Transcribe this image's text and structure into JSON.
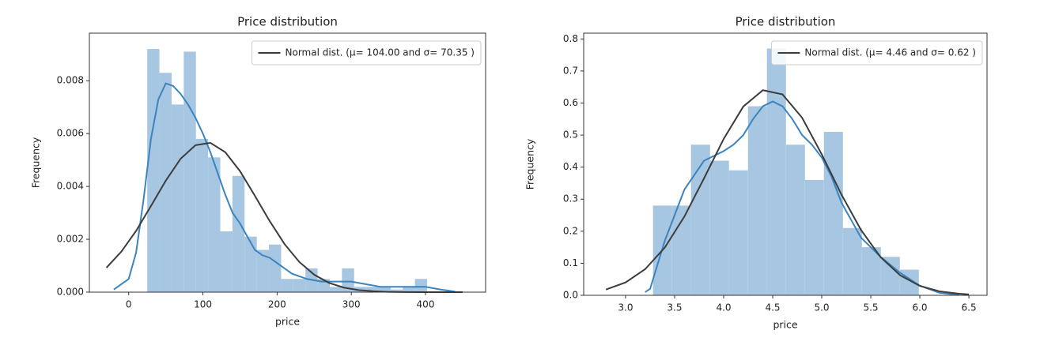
{
  "chart_data": [
    {
      "type": "histogram",
      "title": "Price distribution",
      "x_label": "price",
      "y_label": "Frequency",
      "xlim": [
        -53,
        481
      ],
      "ylim": [
        0,
        0.0098
      ],
      "xticks": [
        0,
        100,
        200,
        300,
        400
      ],
      "yticks": [
        {
          "value": 0,
          "label": "0.000"
        },
        {
          "value": 0.002,
          "label": "0.002"
        },
        {
          "value": 0.004,
          "label": "0.004"
        },
        {
          "value": 0.006,
          "label": "0.006"
        },
        {
          "value": 0.008,
          "label": "0.008"
        }
      ],
      "legend": "upper right",
      "histogram": {
        "color": "#a6c6e1",
        "bins": [
          25,
          41.4,
          57.8,
          74.2,
          90.6,
          107,
          123.4,
          139.8,
          156.2,
          172.6,
          189,
          205.4,
          221.8,
          238.2,
          254.6,
          271,
          287.4,
          303.8,
          320.2,
          336.6,
          353,
          369.4,
          385.8,
          402.2
        ],
        "counts": [
          0.0092,
          0.0083,
          0.0071,
          0.0091,
          0.0058,
          0.0051,
          0.0023,
          0.0044,
          0.0021,
          0.0016,
          0.0018,
          0.0005,
          0.0005,
          0.0009,
          0.0005,
          0.0002,
          0.0009,
          0.0002,
          0.0002,
          0.0002,
          0.0001,
          0.0002,
          0.0005
        ]
      },
      "kde": {
        "color": "#3b84bf",
        "x": [
          -20,
          0,
          10,
          20,
          30,
          40,
          50,
          60,
          70,
          80,
          90,
          100,
          110,
          120,
          130,
          140,
          150,
          160,
          170,
          180,
          190,
          200,
          220,
          240,
          260,
          280,
          300,
          320,
          340,
          360,
          380,
          400,
          420,
          440
        ],
        "values": [
          0.0001,
          0.0005,
          0.0015,
          0.0035,
          0.0058,
          0.0073,
          0.0079,
          0.0078,
          0.0075,
          0.0071,
          0.0066,
          0.006,
          0.0053,
          0.0045,
          0.0037,
          0.003,
          0.0026,
          0.0021,
          0.0016,
          0.0014,
          0.0013,
          0.0011,
          0.0007,
          0.0005,
          0.0004,
          0.0004,
          0.0004,
          0.0003,
          0.0002,
          0.0002,
          0.0002,
          0.0002,
          0.0001,
          2e-05
        ]
      },
      "normal": {
        "name": "Normal dist. ($\\mu=$ 104.00 and $\\sigma=$ 70.35 )",
        "display_name": "Normal dist. (μ= 104.00 and σ= 70.35 )",
        "color": "#3c3c3c",
        "x": [
          -30,
          -10,
          10,
          30,
          50,
          70,
          90,
          110,
          130,
          150,
          170,
          190,
          210,
          230,
          250,
          270,
          290,
          310,
          330,
          350,
          370,
          390,
          410,
          430,
          450
        ],
        "values": [
          0.000924,
          0.00153,
          0.00232,
          0.00326,
          0.00422,
          0.00505,
          0.00556,
          0.00565,
          0.0053,
          0.00458,
          0.00365,
          0.00269,
          0.00182,
          0.00114,
          0.00066,
          0.00035,
          0.000172,
          7.8e-05,
          3.25e-05,
          1.2e-05,
          3e-06,
          1e-06,
          0,
          0,
          0
        ]
      }
    },
    {
      "type": "histogram",
      "title": "Price distribution",
      "x_label": "price",
      "y_label": "Frequency",
      "xlim": [
        2.573,
        6.685
      ],
      "ylim": [
        0,
        0.818
      ],
      "xticks": [
        {
          "value": 3,
          "label": "3.0"
        },
        3.5,
        {
          "value": 4,
          "label": "4.0"
        },
        4.5,
        {
          "value": 5,
          "label": "5.0"
        },
        5.5,
        {
          "value": 6,
          "label": "6.0"
        },
        6.5
      ],
      "yticks": [
        {
          "value": 0,
          "label": "0.0"
        },
        0.1,
        0.2,
        0.3,
        0.4,
        0.5,
        0.6,
        0.7,
        0.8
      ],
      "legend": "upper right",
      "histogram": {
        "color": "#a6c6e1",
        "bins": [
          3.28,
          3.474,
          3.667,
          3.861,
          4.054,
          4.248,
          4.441,
          4.635,
          4.829,
          5.022,
          5.216,
          5.409,
          5.603,
          5.796,
          5.99
        ],
        "counts": [
          0.28,
          0.28,
          0.47,
          0.42,
          0.39,
          0.59,
          0.77,
          0.47,
          0.36,
          0.51,
          0.21,
          0.15,
          0.12,
          0.08
        ]
      },
      "kde": {
        "color": "#3b84bf",
        "x": [
          3.2,
          3.25,
          3.4,
          3.6,
          3.8,
          4.0,
          4.1,
          4.2,
          4.3,
          4.4,
          4.5,
          4.6,
          4.7,
          4.8,
          4.9,
          5.0,
          5.1,
          5.2,
          5.4,
          5.6,
          5.8,
          6.0,
          6.2,
          6.4
        ],
        "values": [
          0.01,
          0.02,
          0.17,
          0.33,
          0.42,
          0.45,
          0.47,
          0.5,
          0.55,
          0.59,
          0.605,
          0.59,
          0.55,
          0.5,
          0.47,
          0.43,
          0.37,
          0.29,
          0.18,
          0.12,
          0.07,
          0.03,
          0.008,
          0.001
        ]
      },
      "normal": {
        "name": "Normal dist. ($\\mu=$ 4.46 and $\\sigma=$ 0.62 )",
        "display_name": "Normal dist. (μ= 4.46 and σ= 0.62 )",
        "color": "#3c3c3c",
        "x": [
          2.8,
          3.0,
          3.2,
          3.4,
          3.6,
          3.8,
          4.0,
          4.2,
          4.4,
          4.6,
          4.8,
          5.0,
          5.2,
          5.4,
          5.6,
          5.8,
          6.0,
          6.2,
          6.4,
          6.5
        ],
        "values": [
          0.0179,
          0.0402,
          0.0816,
          0.149,
          0.246,
          0.365,
          0.488,
          0.589,
          0.64,
          0.627,
          0.554,
          0.44,
          0.315,
          0.204,
          0.119,
          0.0623,
          0.0294,
          0.0125,
          0.0048,
          0.0029
        ]
      }
    }
  ]
}
